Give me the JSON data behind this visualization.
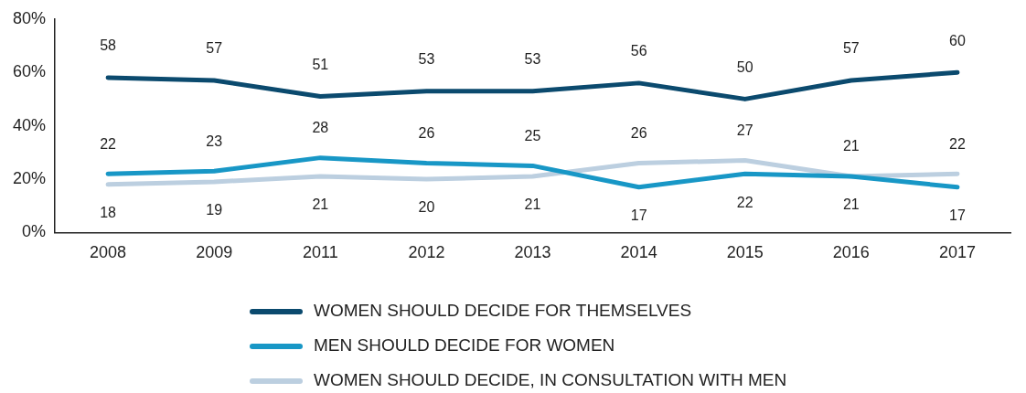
{
  "chart_data": {
    "type": "line",
    "categories": [
      "2008",
      "2009",
      "2011",
      "2012",
      "2013",
      "2014",
      "2015",
      "2016",
      "2017"
    ],
    "series": [
      {
        "name": "WOMEN SHOULD DECIDE FOR THEMSELVES",
        "color": "#0b4a6e",
        "values": [
          58,
          57,
          51,
          53,
          53,
          56,
          50,
          57,
          60
        ]
      },
      {
        "name": "MEN SHOULD DECIDE FOR WOMEN",
        "color": "#1897c6",
        "values": [
          22,
          23,
          28,
          26,
          25,
          17,
          22,
          21,
          17
        ]
      },
      {
        "name": "WOMEN SHOULD DECIDE, IN CONSULTATION WITH MEN",
        "color": "#bccfe0",
        "values": [
          18,
          19,
          21,
          20,
          21,
          26,
          27,
          21,
          22
        ]
      }
    ],
    "ylim": [
      0,
      80
    ],
    "yticks": [
      {
        "value": 0,
        "label": "0%"
      },
      {
        "value": 20,
        "label": "20%"
      },
      {
        "value": 40,
        "label": "40%"
      },
      {
        "value": 60,
        "label": "60%"
      },
      {
        "value": 80,
        "label": "80%"
      }
    ],
    "grid": false,
    "legend": "bottom",
    "marker": "none",
    "line_style": "solid",
    "data_labels": true
  }
}
